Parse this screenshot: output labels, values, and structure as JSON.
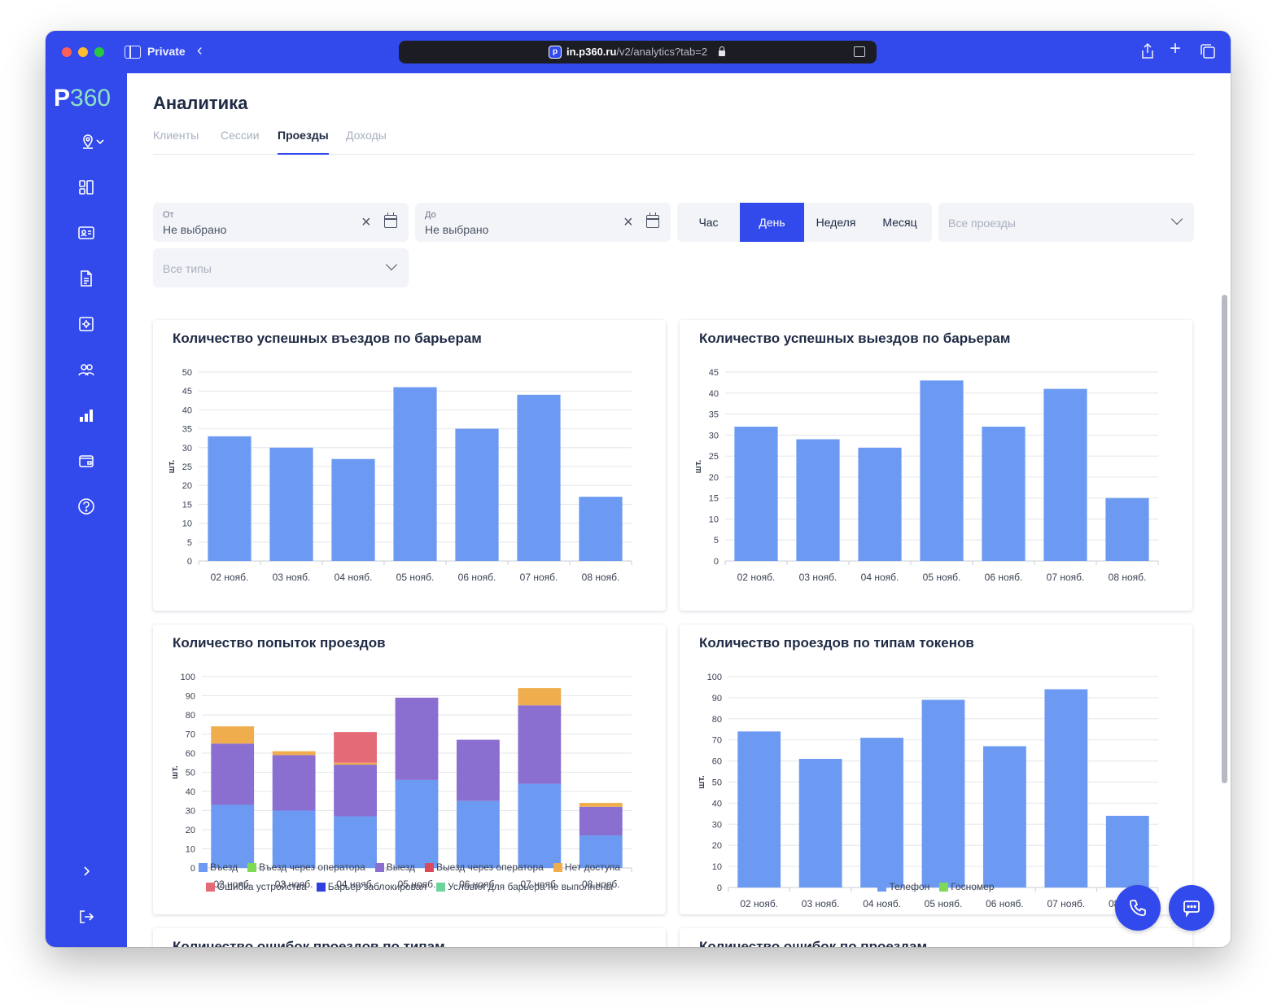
{
  "browser": {
    "mode_label": "Private",
    "url_host": "in.p360.ru",
    "url_path": "/v2/analytics?tab=2"
  },
  "logo": {
    "letter": "P",
    "number": "360"
  },
  "sidebar": {
    "icons": [
      "location-pin-icon",
      "dashboard-icon",
      "id-card-icon",
      "document-icon",
      "settings-box-icon",
      "users-icon",
      "bar-chart-icon",
      "wallet-icon",
      "help-icon"
    ],
    "bottom_icons": [
      "chevron-right-icon",
      "logout-icon"
    ]
  },
  "page": {
    "title": "Аналитика"
  },
  "tabs": [
    {
      "label": "Клиенты",
      "active": false
    },
    {
      "label": "Сессии",
      "active": false
    },
    {
      "label": "Проезды",
      "active": true
    },
    {
      "label": "Доходы",
      "active": false
    }
  ],
  "filters": {
    "from": {
      "label": "От",
      "value": "Не выбрано"
    },
    "to": {
      "label": "До",
      "value": "Не выбрано"
    },
    "period": {
      "options": [
        "Час",
        "День",
        "Неделя",
        "Месяц"
      ],
      "selected": "День"
    },
    "passes_placeholder": "Все проезды",
    "types_placeholder": "Все типы"
  },
  "colors": {
    "accent": "#3249ec",
    "entry": "#6c9af2",
    "entry_operator": "#7ed957",
    "exit": "#8a6fd0",
    "exit_operator": "#d94a5c",
    "no_access": "#efad4d",
    "device_error": "#e36a76",
    "barrier_blocked": "#2f3fe0",
    "conditions_failed": "#6cd49a",
    "token_phone": "#6c9af2",
    "token_plate": "#7ed957"
  },
  "chart_data": [
    {
      "type": "bar",
      "title": "Количество успешных въездов по барьерам",
      "ylabel": "шт.",
      "categories": [
        "02 нояб.",
        "03 нояб.",
        "04 нояб.",
        "05 нояб.",
        "06 нояб.",
        "07 нояб.",
        "08 нояб."
      ],
      "values": [
        33,
        30,
        27,
        46,
        35,
        44,
        17
      ],
      "ylim": [
        0,
        50
      ],
      "yticks": [
        0,
        5,
        10,
        15,
        20,
        25,
        30,
        35,
        40,
        45,
        50
      ],
      "grid": true
    },
    {
      "type": "bar",
      "title": "Количество успешных выездов по барьерам",
      "ylabel": "шт.",
      "categories": [
        "02 нояб.",
        "03 нояб.",
        "04 нояб.",
        "05 нояб.",
        "06 нояб.",
        "07 нояб.",
        "08 нояб."
      ],
      "values": [
        32,
        29,
        27,
        43,
        32,
        41,
        15
      ],
      "ylim": [
        0,
        45
      ],
      "yticks": [
        0,
        5,
        10,
        15,
        20,
        25,
        30,
        35,
        40,
        45
      ],
      "grid": true
    },
    {
      "type": "bar",
      "stacked": true,
      "title": "Количество попыток проездов",
      "ylabel": "шт.",
      "categories": [
        "02 нояб.",
        "03 нояб.",
        "04 нояб.",
        "05 нояб.",
        "06 нояб.",
        "07 нояб.",
        "08 нояб."
      ],
      "ylim": [
        0,
        100
      ],
      "yticks": [
        0,
        10,
        20,
        30,
        40,
        50,
        60,
        70,
        80,
        90,
        100
      ],
      "grid": true,
      "legend_position": "bottom",
      "series": [
        {
          "name": "Въезд",
          "values": [
            33,
            30,
            27,
            46,
            35,
            44,
            17
          ]
        },
        {
          "name": "Въезд через оператора",
          "values": [
            0,
            0,
            0,
            0,
            0,
            0,
            0
          ]
        },
        {
          "name": "Выезд",
          "values": [
            32,
            29,
            27,
            43,
            32,
            41,
            15
          ]
        },
        {
          "name": "Выезд через оператора",
          "values": [
            0,
            0,
            0,
            0,
            0,
            0,
            0
          ]
        },
        {
          "name": "Нет доступа",
          "values": [
            9,
            2,
            1,
            0,
            0,
            9,
            2
          ]
        },
        {
          "name": "Ошибка устройства",
          "values": [
            0,
            0,
            16,
            0,
            0,
            0,
            0
          ]
        },
        {
          "name": "Барьер заблокирован",
          "values": [
            0,
            0,
            0,
            0,
            0,
            0,
            0
          ]
        },
        {
          "name": "Условия для барьера не выполнены",
          "values": [
            0,
            0,
            0,
            0,
            0,
            0,
            0
          ]
        }
      ]
    },
    {
      "type": "bar",
      "stacked": true,
      "title": "Количество проездов по типам токенов",
      "ylabel": "шт.",
      "categories": [
        "02 нояб.",
        "03 нояб.",
        "04 нояб.",
        "05 нояб.",
        "06 нояб.",
        "07 нояб.",
        "08 нояб."
      ],
      "ylim": [
        0,
        100
      ],
      "yticks": [
        0,
        10,
        20,
        30,
        40,
        50,
        60,
        70,
        80,
        90,
        100
      ],
      "grid": true,
      "legend_position": "bottom",
      "series": [
        {
          "name": "Телефон",
          "values": [
            74,
            61,
            71,
            89,
            67,
            94,
            34
          ]
        },
        {
          "name": "Госномер",
          "values": [
            0,
            0,
            0,
            0,
            0,
            0,
            0
          ]
        }
      ]
    }
  ],
  "lower_cards": [
    {
      "title": "Количество ошибок проездов по типам"
    },
    {
      "title": "Количество ошибок по проездам"
    }
  ]
}
